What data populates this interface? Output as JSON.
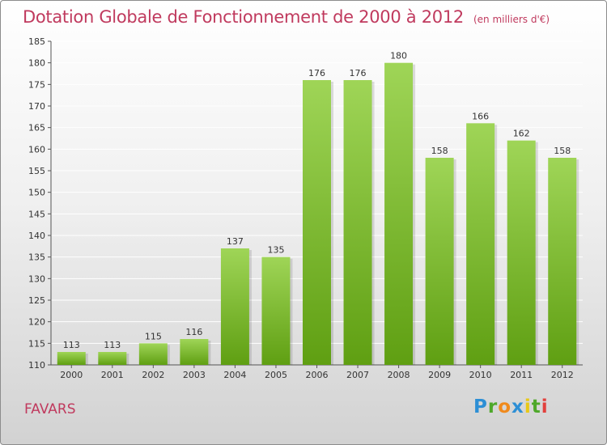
{
  "title": "Dotation Globale de Fonctionnement de 2000 à 2012",
  "subtitle": "(en milliers d'€)",
  "footer_name": "FAVARS",
  "logo": {
    "text": "Proxiti",
    "letter_colors": [
      "#2d8fd5",
      "#4ea82a",
      "#f08a1c",
      "#2d8fd5",
      "#e8c817",
      "#4ea82a",
      "#e2403c"
    ]
  },
  "colors": {
    "bar_top": "#9fd557",
    "bar_bottom": "#5f9f12",
    "title": "#c03a5e",
    "grid": "#ffffff"
  },
  "chart_data": {
    "type": "bar",
    "categories": [
      "2000",
      "2001",
      "2002",
      "2003",
      "2004",
      "2005",
      "2006",
      "2007",
      "2008",
      "2009",
      "2010",
      "2011",
      "2012"
    ],
    "values": [
      113,
      113,
      115,
      116,
      137,
      135,
      176,
      176,
      180,
      158,
      166,
      162,
      158
    ],
    "ylim": [
      110,
      185
    ],
    "yticks": [
      110,
      115,
      120,
      125,
      130,
      135,
      140,
      145,
      150,
      155,
      160,
      165,
      170,
      175,
      180,
      185
    ],
    "grid": true,
    "data_labels": true
  }
}
